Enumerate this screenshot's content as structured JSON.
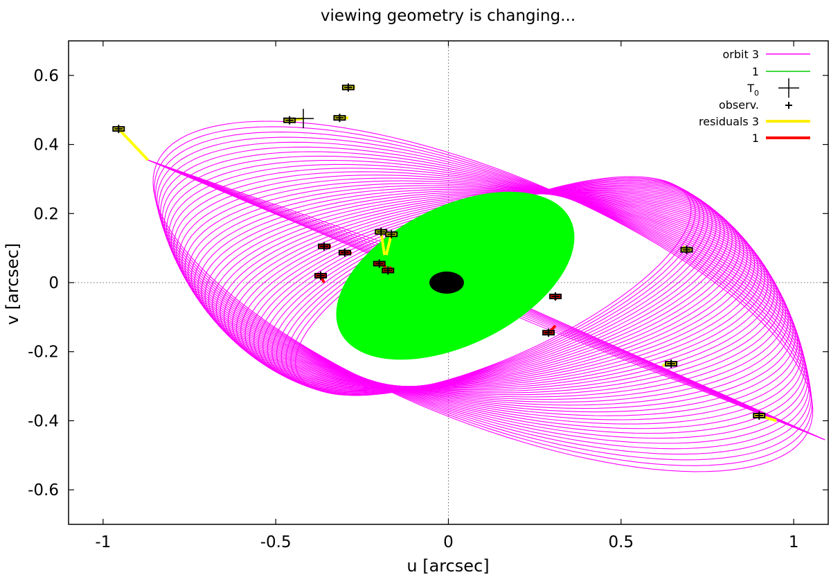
{
  "chart_data": {
    "type": "line",
    "title": "viewing geometry is changing...",
    "xlabel": "u [arcsec]",
    "ylabel": "v [arcsec]",
    "xlim": [
      -1.1,
      1.1
    ],
    "ylim": [
      -0.7,
      0.7
    ],
    "x_ticks": [
      -1,
      -0.5,
      0,
      0.5,
      1
    ],
    "y_ticks": [
      -0.6,
      -0.4,
      -0.2,
      0,
      0.2,
      0.4,
      0.6
    ],
    "x_tick_labels": [
      "-1",
      "-0.5",
      "0",
      "0.5",
      "1"
    ],
    "y_tick_labels": [
      "-0.6",
      "-0.4",
      "-0.2",
      "0",
      "0.2",
      "0.4",
      "0.6"
    ],
    "zero_lines": "dotted",
    "legend_position": "top-right",
    "legend": {
      "orbit_label": "orbit 3",
      "orbit_inner_label": "1",
      "t0_label_main": "T",
      "t0_label_sub": "0",
      "observ_label": "observ.",
      "residuals_label": "residuals 3",
      "residuals_inner_label": "1"
    },
    "colors": {
      "orbit_3": "#ff00ff",
      "orbit_1": "#00ff00",
      "residuals_3": "#ffff00",
      "residuals_1": "#ff0000",
      "observ": "#000000"
    },
    "series": [
      {
        "name": "orbit 3",
        "shape": "precessing ellipse family",
        "inner": {
          "center": [
            0.13,
            -0.01
          ],
          "semi_axes": [
            0.62,
            0.21
          ],
          "tilt_deg": 24
        },
        "outer": {
          "center": [
            0.1,
            -0.04
          ],
          "semi_axes": [
            1.02,
            0.36
          ],
          "tilt_deg": -22
        },
        "tips": [
          [
            -0.87,
            0.355
          ],
          [
            1.09,
            -0.455
          ]
        ]
      },
      {
        "name": "1",
        "shape": "filled ellipse",
        "center": [
          0.02,
          0.02
        ],
        "semi_axes": [
          0.37,
          0.2
        ],
        "tilt_deg": 26
      }
    ],
    "black_blob": {
      "center": [
        -0.005,
        0.0
      ],
      "semi_axes": [
        0.05,
        0.032
      ]
    },
    "observations_3": [
      {
        "obs": [
          -0.955,
          0.445
        ],
        "model": [
          -0.87,
          0.355
        ]
      },
      {
        "obs": [
          -0.29,
          0.565
        ],
        "model": [
          -0.27,
          0.565
        ]
      },
      {
        "obs": [
          -0.46,
          0.47
        ],
        "model": [
          -0.42,
          0.475
        ]
      },
      {
        "obs": [
          -0.315,
          0.477
        ],
        "model": [
          -0.29,
          0.477
        ]
      },
      {
        "obs": [
          -0.195,
          0.147
        ],
        "model": [
          -0.185,
          0.08
        ]
      },
      {
        "obs": [
          -0.165,
          0.14
        ],
        "model": [
          -0.18,
          0.08
        ]
      },
      {
        "obs": [
          0.69,
          0.095
        ],
        "model": [
          0.68,
          0.105
        ]
      },
      {
        "obs": [
          0.645,
          -0.235
        ],
        "model": [
          0.62,
          -0.24
        ]
      },
      {
        "obs": [
          0.9,
          -0.385
        ],
        "model": [
          0.95,
          -0.4
        ]
      }
    ],
    "observations_1": [
      {
        "obs": [
          -0.36,
          0.105
        ],
        "model": [
          -0.34,
          0.105
        ]
      },
      {
        "obs": [
          -0.3,
          0.087
        ],
        "model": [
          -0.28,
          0.085
        ]
      },
      {
        "obs": [
          -0.37,
          0.02
        ],
        "model": [
          -0.36,
          0.0
        ]
      },
      {
        "obs": [
          -0.2,
          0.055
        ],
        "model": [
          -0.18,
          0.045
        ]
      },
      {
        "obs": [
          -0.175,
          0.035
        ],
        "model": [
          -0.165,
          0.045
        ]
      },
      {
        "obs": [
          0.31,
          -0.04
        ],
        "model": [
          0.31,
          -0.05
        ]
      },
      {
        "obs": [
          0.29,
          -0.145
        ],
        "model": [
          0.31,
          -0.125
        ]
      }
    ],
    "t0_points": [
      [
        -0.42,
        0.475
      ]
    ]
  }
}
